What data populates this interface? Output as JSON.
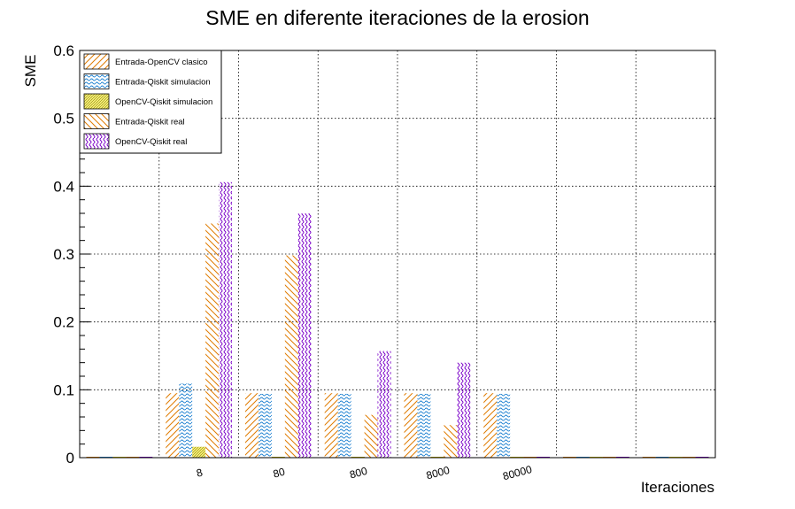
{
  "chart_data": {
    "type": "bar",
    "title": "SME en diferente iteraciones de la erosion",
    "xlabel": "Iteraciones",
    "ylabel": "SME",
    "ylim": [
      0,
      0.6
    ],
    "yticks": [
      "0",
      "0.1",
      "0.2",
      "0.3",
      "0.4",
      "0.5",
      "0.6"
    ],
    "categories": [
      "",
      "8",
      "80",
      "800",
      "8000",
      "80000",
      "",
      ""
    ],
    "grid": true,
    "legend_position": "top-left",
    "series": [
      {
        "name": "Entrada-OpenCV clasico",
        "color": "#e07b00",
        "pattern": "diag",
        "values": [
          0,
          0.095,
          0.095,
          0.095,
          0.095,
          0.095,
          0,
          0
        ]
      },
      {
        "name": "Entrada-Qiskit simulacion",
        "color": "#1a7fd0",
        "pattern": "wave",
        "values": [
          0,
          0.109,
          0.094,
          0.094,
          0.094,
          0.094,
          0,
          0
        ]
      },
      {
        "name": "OpenCV-Qiskit simulacion",
        "color": "#c8b400",
        "pattern": "dense",
        "values": [
          0,
          0.016,
          0,
          0,
          0,
          0,
          0,
          0
        ]
      },
      {
        "name": "Entrada-Qiskit real",
        "color": "#e07b00",
        "pattern": "back",
        "values": [
          0,
          0.345,
          0.298,
          0.063,
          0.048,
          0,
          0,
          0
        ]
      },
      {
        "name": "OpenCV-Qiskit real",
        "color": "#7a00c8",
        "pattern": "wave",
        "values": [
          0,
          0.406,
          0.36,
          0.157,
          0.14,
          0,
          0,
          0
        ]
      }
    ]
  }
}
